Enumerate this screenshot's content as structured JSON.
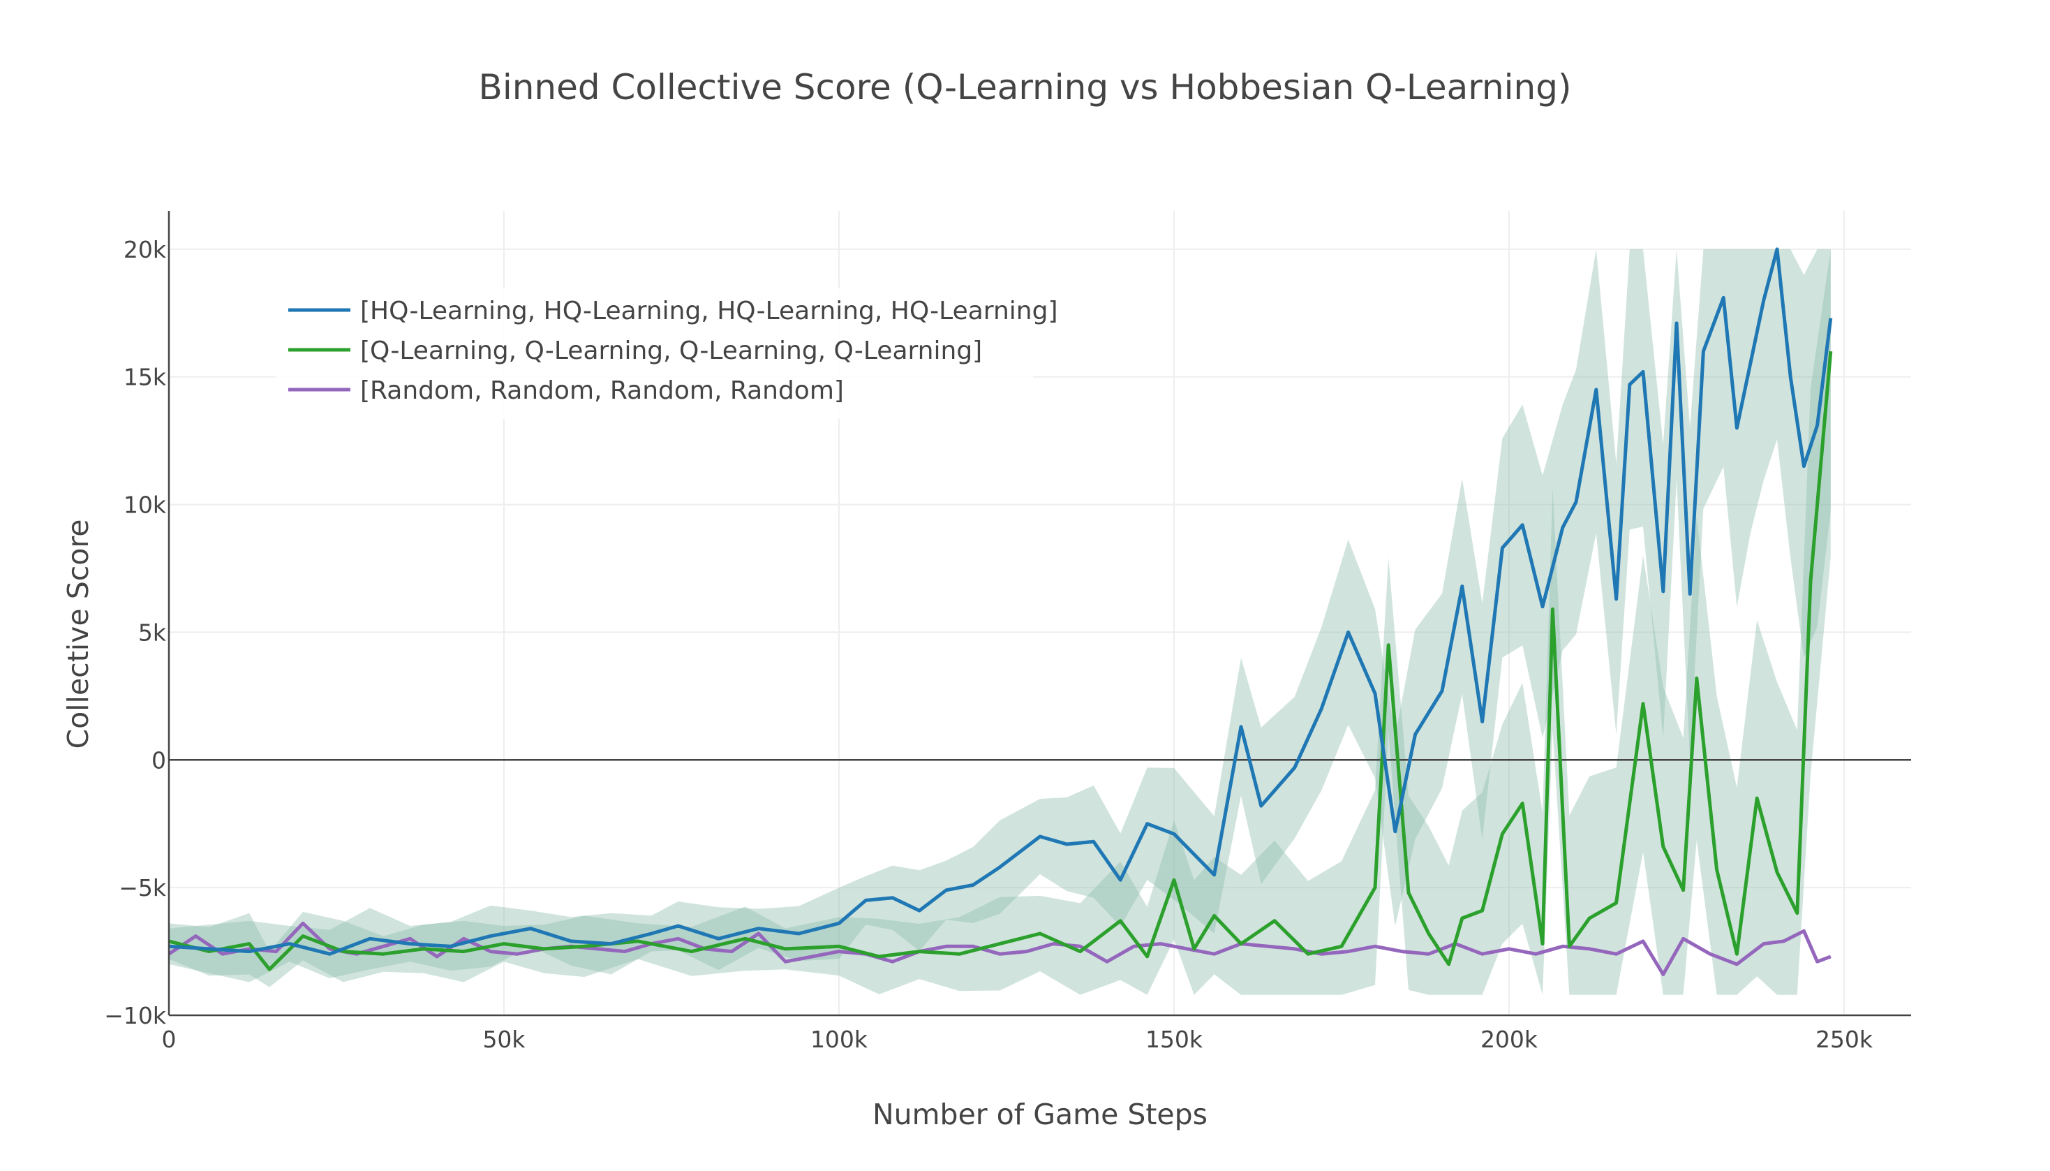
{
  "chart_data": {
    "type": "line",
    "title": "Binned Collective Score (Q-Learning vs Hobbesian Q-Learning)",
    "xlabel": "Number of Game Steps",
    "ylabel": "Collective Score",
    "xlim": [
      0,
      260000
    ],
    "ylim": [
      -10000,
      21500
    ],
    "x_ticks": [
      0,
      50000,
      100000,
      150000,
      200000,
      250000
    ],
    "x_tick_labels": [
      "0",
      "50k",
      "100k",
      "150k",
      "200k",
      "250k"
    ],
    "y_ticks": [
      -10000,
      -5000,
      0,
      5000,
      10000,
      15000,
      20000
    ],
    "y_tick_labels": [
      "−10k",
      "−5k",
      "0",
      "5k",
      "10k",
      "15k",
      "20k"
    ],
    "grid": true,
    "legend_position": "top-left",
    "band_color": "#8fbfaf",
    "series": [
      {
        "name": "[HQ-Learning, HQ-Learning, HQ-Learning, HQ-Learning]",
        "color": "#1f77b4",
        "x": [
          0,
          6000,
          12000,
          18000,
          24000,
          30000,
          36000,
          42000,
          48000,
          54000,
          60000,
          66000,
          72000,
          76000,
          82000,
          88000,
          94000,
          100000,
          104000,
          108000,
          112000,
          116000,
          120000,
          124000,
          130000,
          134000,
          138000,
          142000,
          146000,
          150000,
          156000,
          160000,
          163000,
          168000,
          172000,
          176000,
          180000,
          183000,
          186000,
          190000,
          193000,
          196000,
          199000,
          202000,
          205000,
          208000,
          210000,
          213000,
          216000,
          218000,
          220000,
          223000,
          225000,
          227000,
          229000,
          232000,
          234000,
          236000,
          238000,
          240000,
          242000,
          244000,
          246000,
          248000
        ],
        "values": [
          -7300,
          -7400,
          -7500,
          -7200,
          -7600,
          -7000,
          -7200,
          -7300,
          -6900,
          -6600,
          -7100,
          -7200,
          -6800,
          -6500,
          -7000,
          -6600,
          -6800,
          -6400,
          -5500,
          -5400,
          -5900,
          -5100,
          -4900,
          -4200,
          -3000,
          -3300,
          -3200,
          -4700,
          -2500,
          -2900,
          -4500,
          1300,
          -1800,
          -300,
          2000,
          5000,
          2600,
          -2800,
          1000,
          2700,
          6800,
          1500,
          8300,
          9200,
          6000,
          9100,
          10100,
          14500,
          6300,
          14700,
          15200,
          6600,
          17100,
          6500,
          16000,
          18100,
          13000,
          15500,
          18000,
          20000,
          15000,
          11500,
          13100,
          17300
        ]
      },
      {
        "name": "[Q-Learning, Q-Learning, Q-Learning, Q-Learning]",
        "color": "#2ca02c",
        "x": [
          0,
          6000,
          12000,
          15000,
          20000,
          26000,
          32000,
          38000,
          44000,
          50000,
          56000,
          62000,
          70000,
          78000,
          86000,
          92000,
          100000,
          106000,
          112000,
          118000,
          124000,
          130000,
          136000,
          142000,
          146000,
          150000,
          153000,
          156000,
          160000,
          165000,
          170000,
          175000,
          180000,
          182000,
          185000,
          188000,
          191000,
          193000,
          196000,
          199000,
          202000,
          205000,
          206500,
          209000,
          212000,
          216000,
          220000,
          223000,
          226000,
          228000,
          231000,
          234000,
          237000,
          240000,
          243000,
          245000,
          248000
        ],
        "values": [
          -7100,
          -7500,
          -7200,
          -8200,
          -6900,
          -7500,
          -7600,
          -7400,
          -7500,
          -7200,
          -7400,
          -7300,
          -7100,
          -7500,
          -7000,
          -7400,
          -7300,
          -7700,
          -7500,
          -7600,
          -7200,
          -6800,
          -7500,
          -6300,
          -7700,
          -4700,
          -7400,
          -6100,
          -7200,
          -6300,
          -7600,
          -7300,
          -5000,
          4500,
          -5200,
          -6800,
          -8000,
          -6200,
          -5900,
          -2900,
          -1700,
          -7200,
          5900,
          -7300,
          -6200,
          -5600,
          2200,
          -3400,
          -5100,
          3200,
          -4300,
          -7600,
          -1500,
          -4400,
          -6000,
          7000,
          16000
        ]
      },
      {
        "name": "[Random, Random, Random, Random]",
        "color": "#9467bd",
        "x": [
          0,
          4000,
          8000,
          12000,
          16000,
          20000,
          24000,
          28000,
          32000,
          36000,
          40000,
          44000,
          48000,
          52000,
          56000,
          60000,
          64000,
          68000,
          72000,
          76000,
          80000,
          84000,
          88000,
          92000,
          96000,
          100000,
          104000,
          108000,
          112000,
          116000,
          120000,
          124000,
          128000,
          132000,
          136000,
          140000,
          144000,
          148000,
          152000,
          156000,
          160000,
          164000,
          168000,
          172000,
          176000,
          180000,
          184000,
          188000,
          192000,
          196000,
          200000,
          204000,
          208000,
          212000,
          216000,
          220000,
          223000,
          226000,
          230000,
          234000,
          238000,
          241000,
          244000,
          246000,
          248000
        ],
        "values": [
          -7600,
          -6900,
          -7600,
          -7400,
          -7500,
          -6400,
          -7400,
          -7600,
          -7300,
          -7000,
          -7700,
          -7000,
          -7500,
          -7600,
          -7400,
          -7300,
          -7400,
          -7500,
          -7200,
          -7000,
          -7400,
          -7500,
          -6800,
          -7900,
          -7700,
          -7500,
          -7600,
          -7900,
          -7500,
          -7300,
          -7300,
          -7600,
          -7500,
          -7200,
          -7300,
          -7900,
          -7300,
          -7200,
          -7400,
          -7600,
          -7200,
          -7300,
          -7400,
          -7600,
          -7500,
          -7300,
          -7500,
          -7600,
          -7200,
          -7600,
          -7400,
          -7600,
          -7300,
          -7400,
          -7600,
          -7100,
          -8400,
          -7000,
          -7600,
          -8000,
          -7200,
          -7100,
          -6700,
          -7900,
          -7700
        ]
      }
    ],
    "reference_line_y": 0
  }
}
